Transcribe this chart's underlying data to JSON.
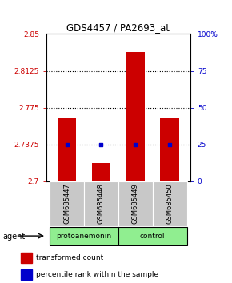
{
  "title": "GDS4457 / PA2693_at",
  "samples": [
    "GSM685447",
    "GSM685448",
    "GSM685449",
    "GSM685450"
  ],
  "transformed_counts": [
    2.765,
    2.718,
    2.832,
    2.765
  ],
  "percentile_ranks": [
    25,
    25,
    25,
    25
  ],
  "ylim_left": [
    2.7,
    2.85
  ],
  "ylim_right": [
    0,
    100
  ],
  "yticks_left": [
    2.7,
    2.7375,
    2.775,
    2.8125,
    2.85
  ],
  "ytick_labels_left": [
    "2.7",
    "2.7375",
    "2.775",
    "2.8125",
    "2.85"
  ],
  "yticks_right": [
    0,
    25,
    50,
    75,
    100
  ],
  "ytick_labels_right": [
    "0",
    "25",
    "50",
    "75",
    "100%"
  ],
  "hlines": [
    2.7375,
    2.775,
    2.8125
  ],
  "groups": [
    {
      "label": "protoanemonin",
      "indices": [
        0,
        1
      ],
      "color": "#90EE90"
    },
    {
      "label": "control",
      "indices": [
        2,
        3
      ],
      "color": "#90EE90"
    }
  ],
  "bar_color": "#CC0000",
  "dot_color": "#0000CC",
  "bar_width": 0.55,
  "agent_label": "agent",
  "legend_items": [
    {
      "color": "#CC0000",
      "label": "transformed count"
    },
    {
      "color": "#0000CC",
      "label": "percentile rank within the sample"
    }
  ],
  "background_color": "#ffffff",
  "sample_box_color": "#c8c8c8"
}
